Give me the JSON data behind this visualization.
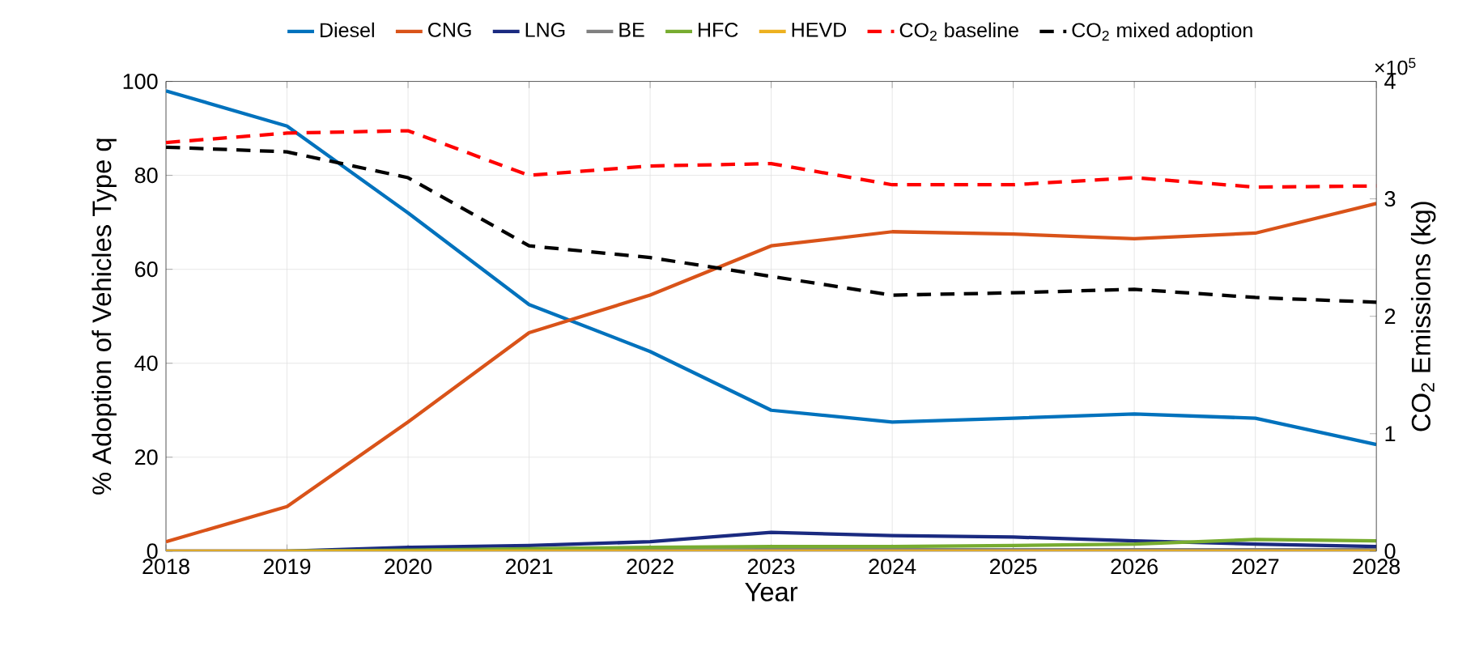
{
  "chart_data": {
    "type": "line",
    "xlabel": "Year",
    "ylabel": "% Adoption of Vehicles Type q",
    "y2label": "CO$_{2}$ Emissions (kg)",
    "x": [
      2018,
      2019,
      2020,
      2021,
      2022,
      2023,
      2024,
      2025,
      2026,
      2027,
      2028
    ],
    "xlim": [
      2018,
      2028
    ],
    "xticks": [
      2018,
      2019,
      2020,
      2021,
      2022,
      2023,
      2024,
      2025,
      2026,
      2027,
      2028
    ],
    "ylim": [
      0,
      100
    ],
    "yticks": [
      0,
      20,
      40,
      60,
      80,
      100
    ],
    "y2lim": [
      0,
      4
    ],
    "y2ticks": [
      0,
      1,
      2,
      3,
      4
    ],
    "grid": true,
    "legend": "top",
    "annotations": [
      "×10$^{5}$"
    ],
    "series": [
      {
        "name": "Diesel",
        "color": "#0072bd",
        "values": [
          98,
          90.5,
          72,
          52.5,
          42.5,
          30,
          27.5,
          28.3,
          29.2,
          28.3,
          22.7
        ]
      },
      {
        "name": "CNG",
        "color": "#d95319",
        "values": [
          2,
          9.5,
          27.5,
          46.5,
          54.5,
          65,
          68,
          67.5,
          66.5,
          67.7,
          74
        ]
      },
      {
        "name": "LNG",
        "color": "#1a2a80",
        "values": [
          0,
          0,
          0.8,
          1.2,
          2,
          4,
          3.3,
          3,
          2.2,
          1.5,
          1
        ]
      },
      {
        "name": "BE",
        "color": "#808080",
        "values": [
          0,
          0,
          0,
          0,
          0.2,
          0.3,
          0.3,
          0.3,
          0.3,
          0.3,
          0.3
        ]
      },
      {
        "name": "HFC",
        "color": "#77ac30",
        "values": [
          null,
          0,
          0.2,
          0.5,
          0.8,
          1,
          1,
          1.2,
          1.5,
          2.5,
          2.2
        ]
      },
      {
        "name": "HEVD",
        "color": "#edb120",
        "values": [
          0,
          0,
          0,
          0,
          0,
          0,
          0,
          0,
          0,
          0,
          0
        ]
      },
      {
        "name": "CO$_{2}$ baseline",
        "color": "#ff0000",
        "axis": "y2",
        "line_style": "dashed",
        "values": [
          3.48,
          3.56,
          3.58,
          3.2,
          3.28,
          3.3,
          3.12,
          3.12,
          3.18,
          3.1,
          3.11
        ]
      },
      {
        "name": "CO$_{2}$ mixed adoption",
        "color": "#000000",
        "axis": "y2",
        "line_style": "dashed",
        "values": [
          3.44,
          3.4,
          3.18,
          2.6,
          2.5,
          2.34,
          2.18,
          2.2,
          2.23,
          2.16,
          2.12
        ]
      }
    ]
  }
}
